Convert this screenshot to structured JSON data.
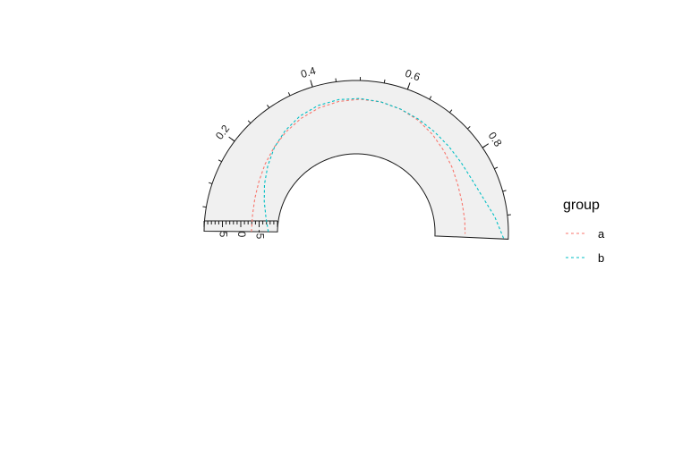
{
  "chart_data": {
    "type": "line",
    "coordinate_system": "polar-arc",
    "theta_axis": {
      "range": [
        0,
        1
      ],
      "ticks": [
        0.2,
        0.4,
        0.6,
        0.8
      ],
      "tick_labels": [
        "0.2",
        "0.4",
        "0.6",
        "0.8"
      ]
    },
    "radial_axis": {
      "range": [
        -10,
        10
      ],
      "ticks": [
        5,
        0,
        -5
      ],
      "tick_labels": [
        "5",
        "0",
        "-5"
      ]
    },
    "legend": {
      "title": "group",
      "position": "right"
    },
    "series": [
      {
        "name": "a",
        "color": "#F8766D",
        "linetype": "dashed",
        "x": [
          0.0,
          0.05,
          0.1,
          0.15,
          0.2,
          0.25,
          0.3,
          0.35,
          0.4,
          0.45,
          0.5,
          0.55,
          0.6,
          0.65,
          0.7,
          0.75,
          0.8,
          0.85,
          0.9,
          0.95,
          0.99
        ],
        "y": [
          -2.9,
          -2.8,
          -2.3,
          -1.5,
          -0.4,
          0.8,
          2.0,
          3.1,
          4.0,
          4.6,
          4.9,
          4.8,
          4.3,
          3.5,
          2.4,
          1.2,
          0.1,
          -0.9,
          -1.5,
          -1.7,
          -1.8
        ]
      },
      {
        "name": "b",
        "color": "#00BFC4",
        "linetype": "dashed",
        "x": [
          0.0,
          0.05,
          0.1,
          0.15,
          0.2,
          0.25,
          0.3,
          0.35,
          0.4,
          0.45,
          0.5,
          0.55,
          0.6,
          0.65,
          0.7,
          0.75,
          0.8,
          0.85,
          0.9,
          0.95,
          1.0
        ],
        "y": [
          -7.5,
          -6.5,
          -5.0,
          -3.2,
          -1.3,
          0.7,
          2.4,
          3.8,
          4.7,
          5.1,
          5.1,
          4.8,
          4.3,
          3.8,
          3.3,
          3.0,
          2.9,
          3.2,
          4.3,
          6.5,
          8.8
        ]
      }
    ]
  }
}
